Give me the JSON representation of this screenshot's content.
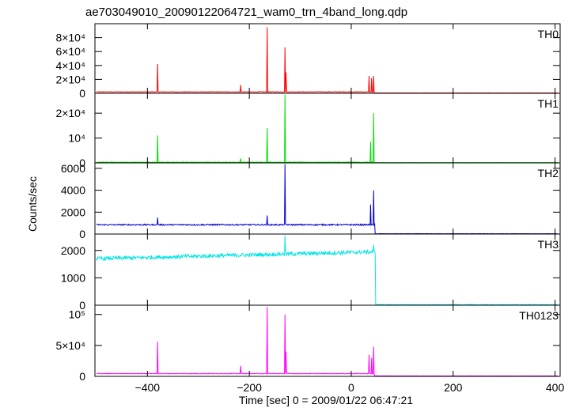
{
  "title": "ae703049010_20090122064721_wam0_trn_4band_long.qdp",
  "ylabel": "Counts/sec",
  "xlabel": "Time [sec] 0 = 2009/01/22 06:47:21",
  "x_ticks": [
    {
      "value": -400,
      "label": "−400"
    },
    {
      "value": -200,
      "label": "−200"
    },
    {
      "value": 0,
      "label": "0"
    },
    {
      "value": 200,
      "label": "200"
    },
    {
      "value": 400,
      "label": "400"
    }
  ],
  "chart_data": {
    "type": "line",
    "xlim": [
      -503,
      410
    ],
    "xlabel": "Time [sec] 0 = 2009/01/22 06:47:21",
    "ylabel": "Counts/sec",
    "grid": false,
    "panels": [
      {
        "name": "TH0",
        "color": "#ff0000",
        "ylim": [
          0,
          100000
        ],
        "y_ticks": [
          {
            "value": 0,
            "label": "0"
          },
          {
            "value": 20000,
            "label": "2×10⁴"
          },
          {
            "value": 40000,
            "label": "4×10⁴"
          },
          {
            "value": 60000,
            "label": "6×10⁴"
          },
          {
            "value": 80000,
            "label": "8×10⁴"
          }
        ],
        "baseline": 2000,
        "noise": 400,
        "after_drop": 500,
        "drop_time": 45,
        "spikes": [
          [
            -380,
            42000
          ],
          [
            -217,
            12000
          ],
          [
            -165,
            95000
          ],
          [
            -130,
            66000
          ],
          [
            -128,
            30000
          ],
          [
            35,
            25000
          ],
          [
            40,
            22000
          ],
          [
            44,
            25000
          ]
        ]
      },
      {
        "name": "TH1",
        "color": "#00dd00",
        "ylim": [
          0,
          28000
        ],
        "y_ticks": [
          {
            "value": 0,
            "label": "0"
          },
          {
            "value": 10000,
            "label": "10⁴"
          },
          {
            "value": 20000,
            "label": "2×10⁴"
          }
        ],
        "baseline": 250,
        "noise": 120,
        "after_drop": 120,
        "drop_time": 45,
        "spikes": [
          [
            -380,
            11000
          ],
          [
            -217,
            1800
          ],
          [
            -165,
            14000
          ],
          [
            -130,
            27500
          ],
          [
            38,
            8500
          ],
          [
            44,
            20000
          ]
        ]
      },
      {
        "name": "TH2",
        "color": "#0000cc",
        "ylim": [
          0,
          6500
        ],
        "y_ticks": [
          {
            "value": 0,
            "label": "0"
          },
          {
            "value": 2000,
            "label": "2000"
          },
          {
            "value": 4000,
            "label": "4000"
          },
          {
            "value": 6000,
            "label": "6000"
          }
        ],
        "baseline": 850,
        "noise": 60,
        "after_drop": 30,
        "drop_time": 46,
        "spikes": [
          [
            -380,
            1500
          ],
          [
            -165,
            1700
          ],
          [
            -130,
            6400
          ],
          [
            38,
            2700
          ],
          [
            44,
            4000
          ]
        ]
      },
      {
        "name": "TH3",
        "color": "#00e5e5",
        "ylim": [
          0,
          2600
        ],
        "y_ticks": [
          {
            "value": 0,
            "label": "0"
          },
          {
            "value": 1000,
            "label": "1000"
          },
          {
            "value": 2000,
            "label": "2000"
          }
        ],
        "baseline": 1700,
        "trend_end": 1950,
        "noise": 70,
        "after_drop": 20,
        "drop_time": 47,
        "spikes": [
          [
            -130,
            2550
          ],
          [
            44,
            2200
          ]
        ]
      },
      {
        "name": "TH0123",
        "color": "#ff00ff",
        "ylim": [
          0,
          115000
        ],
        "y_ticks": [
          {
            "value": 0,
            "label": "0"
          },
          {
            "value": 50000,
            "label": "5×10⁴"
          },
          {
            "value": 100000,
            "label": "10⁵"
          }
        ],
        "baseline": 4500,
        "noise": 500,
        "after_drop": 700,
        "drop_time": 45,
        "spikes": [
          [
            -380,
            56000
          ],
          [
            -217,
            17000
          ],
          [
            -165,
            112000
          ],
          [
            -130,
            100000
          ],
          [
            -128,
            40000
          ],
          [
            35,
            35000
          ],
          [
            40,
            30000
          ],
          [
            44,
            48000
          ]
        ]
      }
    ]
  }
}
